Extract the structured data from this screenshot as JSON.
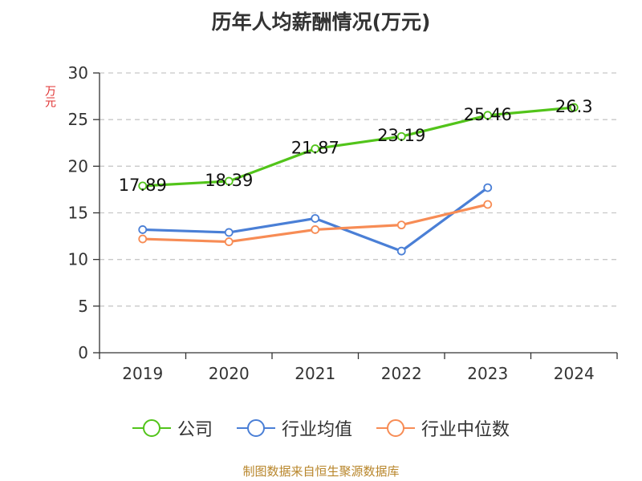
{
  "chart_data": {
    "type": "line",
    "title": "历年人均薪酬情况(万元)",
    "ylabel": "万元",
    "xlabel": "",
    "categories": [
      "2019",
      "2020",
      "2021",
      "2022",
      "2023",
      "2024"
    ],
    "ylim": [
      0,
      30
    ],
    "yticks": [
      0,
      5,
      10,
      15,
      20,
      25,
      30
    ],
    "grid": "horizontal dashed",
    "legend_position": "bottom",
    "series": [
      {
        "name": "公司",
        "color": "#52c41a",
        "values": [
          17.89,
          18.39,
          21.87,
          23.19,
          25.46,
          26.3
        ],
        "labels": [
          "17.89",
          "18.39",
          "21.87",
          "23.19",
          "25.46",
          "26.3"
        ]
      },
      {
        "name": "行业均值",
        "color": "#4a7fd6",
        "values": [
          13.2,
          12.9,
          14.4,
          10.9,
          17.7,
          null
        ]
      },
      {
        "name": "行业中位数",
        "color": "#f78c55",
        "values": [
          12.2,
          11.9,
          13.2,
          13.7,
          15.9,
          null
        ]
      }
    ]
  },
  "source": "制图数据来自恒生聚源数据库"
}
